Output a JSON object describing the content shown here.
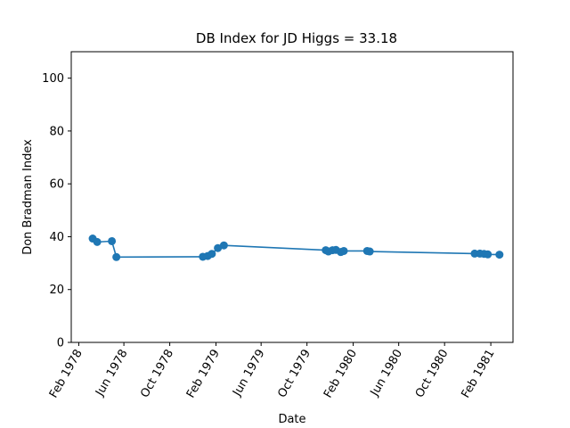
{
  "chart_data": {
    "type": "line",
    "title": "DB Index for JD Higgs = 33.18",
    "xlabel": "Date",
    "ylabel": "Don Bradman Index",
    "xlim": [
      "1978-01-12",
      "1981-04-01"
    ],
    "ylim": [
      0,
      110
    ],
    "x_ticks": [
      {
        "date": "1978-02-01",
        "label": "Feb 1978"
      },
      {
        "date": "1978-06-01",
        "label": "Jun 1978"
      },
      {
        "date": "1978-10-01",
        "label": "Oct 1978"
      },
      {
        "date": "1979-02-01",
        "label": "Feb 1979"
      },
      {
        "date": "1979-06-01",
        "label": "Jun 1979"
      },
      {
        "date": "1979-10-01",
        "label": "Oct 1979"
      },
      {
        "date": "1980-02-01",
        "label": "Feb 1980"
      },
      {
        "date": "1980-06-01",
        "label": "Jun 1980"
      },
      {
        "date": "1980-10-01",
        "label": "Oct 1980"
      },
      {
        "date": "1981-02-01",
        "label": "Feb 1981"
      }
    ],
    "y_ticks": [
      0,
      20,
      40,
      60,
      80,
      100
    ],
    "grid": false,
    "series": [
      {
        "color": "#1f77b4",
        "marker": "circle",
        "points": [
          {
            "x": "1978-03-10",
            "y": 39.3
          },
          {
            "x": "1978-03-22",
            "y": 38.0
          },
          {
            "x": "1978-04-30",
            "y": 38.3
          },
          {
            "x": "1978-05-12",
            "y": 32.3
          },
          {
            "x": "1978-12-28",
            "y": 32.4
          },
          {
            "x": "1979-01-10",
            "y": 32.7
          },
          {
            "x": "1979-01-21",
            "y": 33.5
          },
          {
            "x": "1979-02-06",
            "y": 35.7
          },
          {
            "x": "1979-02-22",
            "y": 36.7
          },
          {
            "x": "1979-11-20",
            "y": 34.9
          },
          {
            "x": "1979-11-27",
            "y": 34.4
          },
          {
            "x": "1979-12-08",
            "y": 34.9
          },
          {
            "x": "1979-12-17",
            "y": 35.0
          },
          {
            "x": "1979-12-30",
            "y": 34.2
          },
          {
            "x": "1980-01-07",
            "y": 34.6
          },
          {
            "x": "1980-03-09",
            "y": 34.6
          },
          {
            "x": "1980-03-16",
            "y": 34.4
          },
          {
            "x": "1980-12-20",
            "y": 33.6
          },
          {
            "x": "1981-01-03",
            "y": 33.6
          },
          {
            "x": "1981-01-14",
            "y": 33.5
          },
          {
            "x": "1981-01-24",
            "y": 33.3
          },
          {
            "x": "1981-02-24",
            "y": 33.2
          }
        ]
      }
    ]
  }
}
